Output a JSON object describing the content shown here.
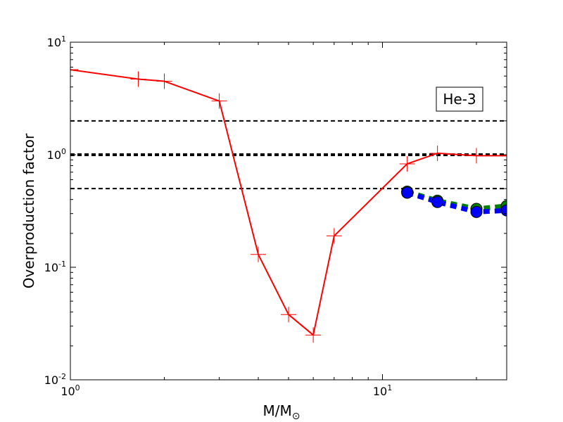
{
  "chart_data": {
    "type": "line",
    "xscale": "log",
    "yscale": "log",
    "xlim": [
      1,
      25
    ],
    "ylim": [
      0.01,
      10
    ],
    "xlabel": {
      "base": "M/M",
      "sub": "⊙"
    },
    "ylabel": "Overproduction factor",
    "x_ticks": [
      {
        "value": 1,
        "base": "10",
        "exp": "0"
      },
      {
        "value": 10,
        "base": "10",
        "exp": "1"
      }
    ],
    "y_ticks": [
      {
        "value": 0.01,
        "base": "10",
        "exp": "-2"
      },
      {
        "value": 0.1,
        "base": "10",
        "exp": "-1"
      },
      {
        "value": 1,
        "base": "10",
        "exp": "0"
      },
      {
        "value": 10,
        "base": "10",
        "exp": "1"
      }
    ],
    "annotation": "He-3",
    "reference_lines": [
      {
        "y": 2,
        "style": "dashed",
        "weight": "thin"
      },
      {
        "y": 1,
        "style": "dashed",
        "weight": "thick"
      },
      {
        "y": 0.5,
        "style": "dashed",
        "weight": "thin"
      }
    ],
    "series": [
      {
        "color": "#ff0000",
        "linestyle": "solid",
        "marker": "plus",
        "x": [
          1,
          1.65,
          2,
          3,
          4,
          5,
          6,
          7,
          12,
          15,
          20,
          25
        ],
        "y": [
          5.7,
          4.7,
          4.5,
          3.0,
          0.13,
          0.038,
          0.025,
          0.19,
          0.83,
          1.03,
          0.98,
          0.98
        ]
      },
      {
        "color": "#008000",
        "linestyle": "dotted",
        "marker": "circle",
        "x": [
          12,
          15,
          20,
          25
        ],
        "y": [
          0.47,
          0.39,
          0.33,
          0.35
        ]
      },
      {
        "color": "#0000ff",
        "linestyle": "dotted",
        "marker": "circle",
        "x": [
          12,
          15,
          20,
          25
        ],
        "y": [
          0.46,
          0.38,
          0.31,
          0.32
        ]
      }
    ]
  }
}
